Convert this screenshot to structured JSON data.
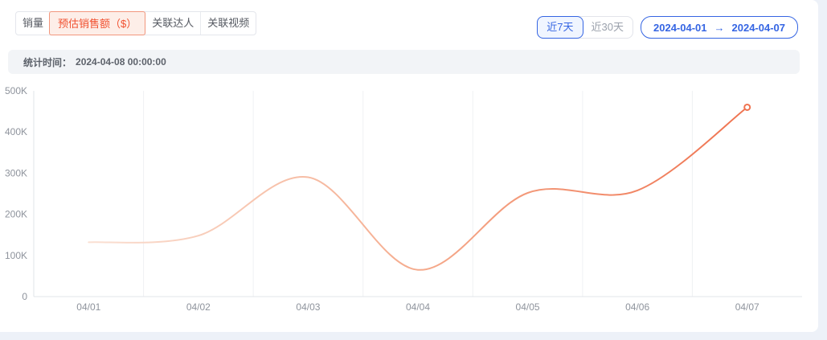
{
  "tabs": {
    "items": [
      {
        "label": "销量",
        "selected": false
      },
      {
        "label": "预估销售额（$）",
        "selected": true
      },
      {
        "label": "关联达人",
        "selected": false
      },
      {
        "label": "关联视频",
        "selected": false
      }
    ]
  },
  "range_controls": {
    "last7_label": "近7天",
    "last30_label": "近30天",
    "date_start": "2024-04-01",
    "arrow": "→",
    "date_end": "2024-04-07"
  },
  "stats_bar": {
    "label": "统计时间：",
    "value": "2024-04-08 00:00:00"
  },
  "chart_data": {
    "type": "line",
    "categories": [
      "04/01",
      "04/02",
      "04/03",
      "04/04",
      "04/05",
      "04/06",
      "04/07"
    ],
    "series": [
      {
        "name": "预估销售额（$）",
        "values": [
          132000,
          148000,
          290000,
          65000,
          252000,
          258000,
          460000
        ]
      }
    ],
    "title": "",
    "xlabel": "",
    "ylabel": "",
    "ylim": [
      0,
      500000
    ],
    "ytick_labels": [
      "0",
      "100K",
      "200K",
      "300K",
      "400K",
      "500K"
    ],
    "grid": "vertical-only",
    "legend": "none",
    "smooth": true,
    "line_gradient": [
      "#fae0d3",
      "#f5ab8d",
      "#ef7350"
    ],
    "end_marker": {
      "shape": "hollow-circle",
      "color": "#ef7350"
    }
  },
  "colors": {
    "accent_orange": "#f1502f",
    "accent_orange_bg": "#fdeee8",
    "accent_blue": "#3565e3",
    "page_background": "#edf1f8",
    "axis_label": "#8e939c"
  }
}
